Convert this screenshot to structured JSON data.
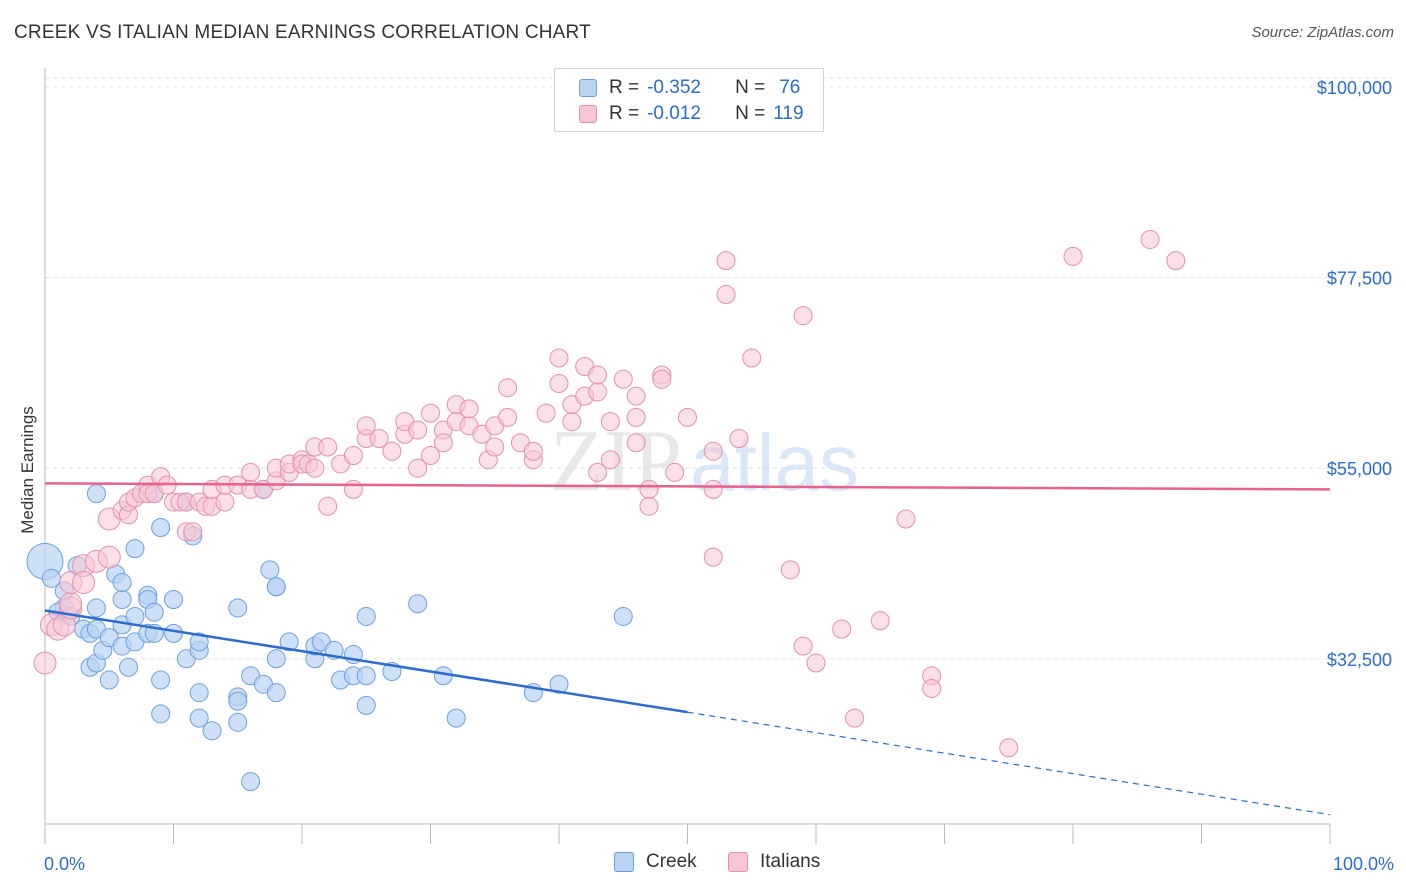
{
  "title": "CREEK VS ITALIAN MEDIAN EARNINGS CORRELATION CHART",
  "source": "Source: ZipAtlas.com",
  "colors": {
    "creek_fill": "#b9d3f3",
    "creek_stroke": "#6d9fe0",
    "creek_line": "#2a6ccf",
    "italians_fill": "#f8c6d6",
    "italians_stroke": "#e58fae",
    "italians_line": "#e8628f",
    "axis_label": "#2a6ccf",
    "grid": "#e3e3e3"
  },
  "legend": {
    "creek": {
      "r_label": "R =",
      "r_value": "-0.352",
      "n_label": "N =",
      "n_value": "76"
    },
    "italians": {
      "r_label": "R =",
      "r_value": "-0.012",
      "n_label": "N =",
      "n_value": "119"
    }
  },
  "watermark": {
    "part1": "ZIP",
    "part2": "atlas"
  },
  "chart_data": {
    "type": "scatter",
    "ylabel": "Median Earnings",
    "x_tick_labels": [
      "0.0%",
      "100.0%"
    ],
    "y_tick_labels": [
      "$100,000",
      "$77,500",
      "$55,000",
      "$32,500"
    ],
    "y_ticks": [
      100000,
      77500,
      55000,
      32500
    ],
    "xlim": [
      0,
      100
    ],
    "ylim": [
      13000,
      102000
    ],
    "grid": true,
    "legend_position": "bottom-center",
    "series": [
      {
        "name": "Creek",
        "trend": {
          "x0": 0,
          "y0": 38200,
          "x1": 50,
          "y1": 26200,
          "dash_to_x": 100,
          "dash_to_y": 14100
        },
        "points": [
          [
            0,
            44000
          ],
          [
            0.5,
            42000
          ],
          [
            1.5,
            38500
          ],
          [
            1.5,
            40500
          ],
          [
            2.5,
            43500
          ],
          [
            1,
            38000
          ],
          [
            2,
            37500
          ],
          [
            3,
            36000
          ],
          [
            3.5,
            35500
          ],
          [
            3.5,
            31500
          ],
          [
            4,
            32000
          ],
          [
            4,
            52000
          ],
          [
            4,
            36000
          ],
          [
            4,
            38500
          ],
          [
            4.5,
            33500
          ],
          [
            5,
            35000
          ],
          [
            5,
            30000
          ],
          [
            5.5,
            42500
          ],
          [
            6,
            36500
          ],
          [
            6,
            39500
          ],
          [
            6,
            41500
          ],
          [
            6,
            34000
          ],
          [
            6.5,
            31500
          ],
          [
            7,
            34500
          ],
          [
            7,
            37500
          ],
          [
            7,
            45500
          ],
          [
            8,
            35500
          ],
          [
            8,
            40000
          ],
          [
            8,
            39500
          ],
          [
            8.5,
            35500
          ],
          [
            8.5,
            38000
          ],
          [
            8.5,
            52000
          ],
          [
            9,
            30000
          ],
          [
            9,
            48000
          ],
          [
            9,
            26000
          ],
          [
            10,
            35500
          ],
          [
            10,
            39500
          ],
          [
            11,
            32500
          ],
          [
            11,
            51000
          ],
          [
            11.5,
            47000
          ],
          [
            12,
            33500
          ],
          [
            12,
            34500
          ],
          [
            12,
            28500
          ],
          [
            12,
            25500
          ],
          [
            13,
            24000
          ],
          [
            15,
            38500
          ],
          [
            15,
            25000
          ],
          [
            15,
            28000
          ],
          [
            15,
            27500
          ],
          [
            16,
            30500
          ],
          [
            16,
            18000
          ],
          [
            17,
            29500
          ],
          [
            17,
            52500
          ],
          [
            17.5,
            43000
          ],
          [
            18,
            28500
          ],
          [
            18,
            41000
          ],
          [
            18,
            32500
          ],
          [
            18,
            41000
          ],
          [
            19,
            34500
          ],
          [
            21,
            32500
          ],
          [
            21,
            34000
          ],
          [
            21.5,
            34500
          ],
          [
            22.5,
            33500
          ],
          [
            23,
            30000
          ],
          [
            24,
            33000
          ],
          [
            24,
            30500
          ],
          [
            25,
            30500
          ],
          [
            25,
            27000
          ],
          [
            25,
            37500
          ],
          [
            27,
            31000
          ],
          [
            29,
            39000
          ],
          [
            31,
            30500
          ],
          [
            32,
            25500
          ],
          [
            38,
            28500
          ],
          [
            40,
            29500
          ],
          [
            45,
            37500
          ]
        ]
      },
      {
        "name": "Italians",
        "trend": {
          "x0": 0,
          "y0": 53200,
          "x1": 100,
          "y1": 52500
        },
        "points": [
          [
            0,
            32000
          ],
          [
            0.5,
            36500
          ],
          [
            1,
            36000
          ],
          [
            1.5,
            36500
          ],
          [
            2,
            38500
          ],
          [
            2,
            39000
          ],
          [
            2,
            41500
          ],
          [
            3,
            43500
          ],
          [
            3,
            41500
          ],
          [
            4,
            44000
          ],
          [
            5,
            49000
          ],
          [
            5,
            44500
          ],
          [
            6,
            50000
          ],
          [
            6.5,
            49500
          ],
          [
            6.5,
            51000
          ],
          [
            7,
            51500
          ],
          [
            7.5,
            52000
          ],
          [
            8,
            53000
          ],
          [
            8,
            52000
          ],
          [
            8.5,
            52000
          ],
          [
            9,
            54000
          ],
          [
            9.5,
            53000
          ],
          [
            10,
            51000
          ],
          [
            10.5,
            51000
          ],
          [
            11,
            51000
          ],
          [
            11,
            47500
          ],
          [
            11.5,
            47500
          ],
          [
            12,
            51000
          ],
          [
            12.5,
            50500
          ],
          [
            13,
            50500
          ],
          [
            13,
            52500
          ],
          [
            14,
            51000
          ],
          [
            14,
            53000
          ],
          [
            15,
            53000
          ],
          [
            16,
            54500
          ],
          [
            16,
            52500
          ],
          [
            17,
            52500
          ],
          [
            18,
            53500
          ],
          [
            18,
            55000
          ],
          [
            19,
            54500
          ],
          [
            19,
            55500
          ],
          [
            20,
            56000
          ],
          [
            20,
            55500
          ],
          [
            20.5,
            55500
          ],
          [
            21,
            57500
          ],
          [
            21,
            55000
          ],
          [
            22,
            50500
          ],
          [
            22,
            57500
          ],
          [
            23,
            55500
          ],
          [
            24,
            52500
          ],
          [
            24,
            56500
          ],
          [
            25,
            58500
          ],
          [
            25,
            60000
          ],
          [
            26,
            58500
          ],
          [
            27,
            57000
          ],
          [
            28,
            59000
          ],
          [
            28,
            60500
          ],
          [
            29,
            59500
          ],
          [
            29,
            55000
          ],
          [
            30,
            56500
          ],
          [
            30,
            61500
          ],
          [
            31,
            59500
          ],
          [
            31,
            58000
          ],
          [
            32,
            60500
          ],
          [
            32,
            62500
          ],
          [
            33,
            62000
          ],
          [
            33,
            60000
          ],
          [
            34,
            59000
          ],
          [
            34.5,
            56000
          ],
          [
            35,
            57500
          ],
          [
            35,
            60000
          ],
          [
            36,
            61000
          ],
          [
            36,
            64500
          ],
          [
            37,
            58000
          ],
          [
            38,
            56000
          ],
          [
            38,
            57000
          ],
          [
            39,
            61500
          ],
          [
            40,
            65000
          ],
          [
            40,
            68000
          ],
          [
            41,
            60500
          ],
          [
            41,
            62500
          ],
          [
            42,
            67000
          ],
          [
            42,
            63500
          ],
          [
            43,
            64000
          ],
          [
            43,
            66000
          ],
          [
            43,
            54500
          ],
          [
            44,
            56000
          ],
          [
            44,
            60500
          ],
          [
            45,
            65500
          ],
          [
            46,
            61000
          ],
          [
            46,
            58000
          ],
          [
            46,
            63500
          ],
          [
            47,
            50500
          ],
          [
            47,
            52500
          ],
          [
            48,
            66000
          ],
          [
            48,
            65500
          ],
          [
            49,
            54500
          ],
          [
            50,
            61000
          ],
          [
            52,
            52500
          ],
          [
            52,
            44500
          ],
          [
            52,
            57000
          ],
          [
            53,
            79500
          ],
          [
            53,
            75500
          ],
          [
            54,
            58500
          ],
          [
            55,
            68000
          ],
          [
            58,
            43000
          ],
          [
            59,
            73000
          ],
          [
            60,
            32000
          ],
          [
            63,
            25500
          ],
          [
            65,
            37000
          ],
          [
            67,
            49000
          ],
          [
            69,
            30500
          ],
          [
            69,
            29000
          ],
          [
            75,
            22000
          ],
          [
            80,
            80000
          ],
          [
            86,
            82000
          ],
          [
            88,
            79500
          ],
          [
            62,
            36000
          ],
          [
            59,
            34000
          ]
        ]
      }
    ]
  }
}
